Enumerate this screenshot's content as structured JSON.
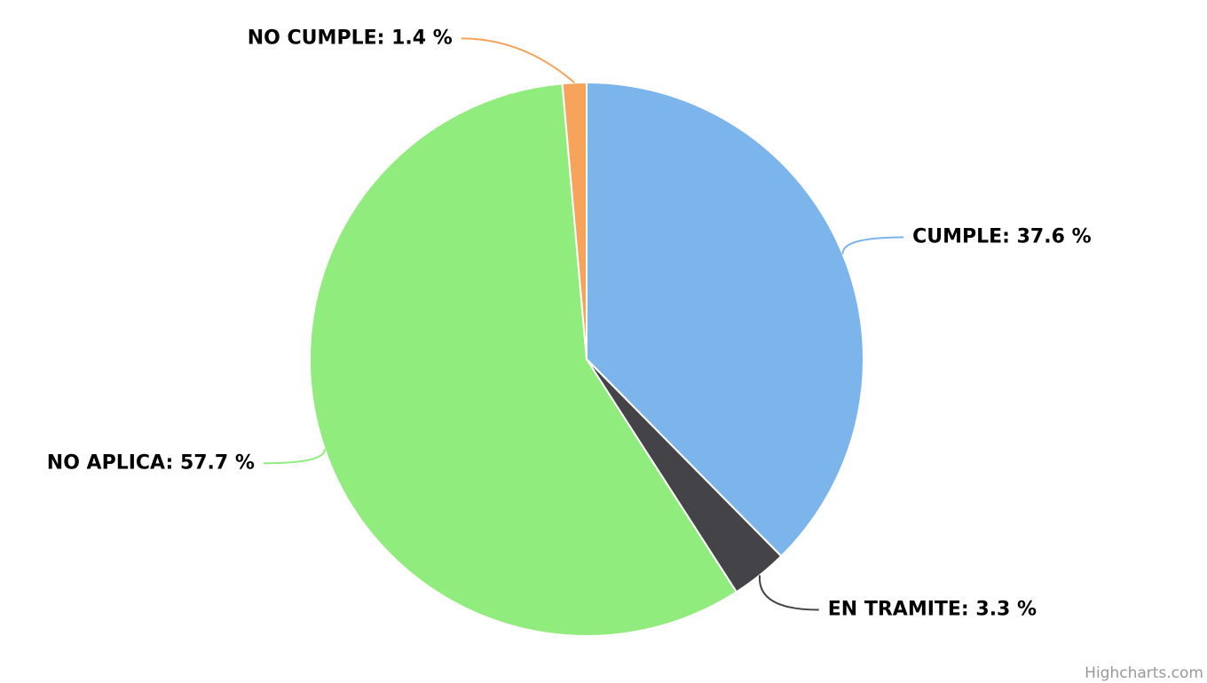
{
  "chart_data": {
    "type": "pie",
    "categories": [
      "CUMPLE",
      "EN TRAMITE",
      "NO APLICA",
      "NO CUMPLE"
    ],
    "values": [
      37.6,
      3.3,
      57.7,
      1.4
    ],
    "value_labels": [
      "CUMPLE: 37.6 %",
      "EN TRAMITE: 3.3 %",
      "NO APLICA: 57.7 %",
      "NO CUMPLE: 1.4 %"
    ],
    "colors": [
      "#7cb5ec",
      "#434348",
      "#90ed7d",
      "#f7a35c"
    ],
    "credit": "Highcharts.com"
  }
}
